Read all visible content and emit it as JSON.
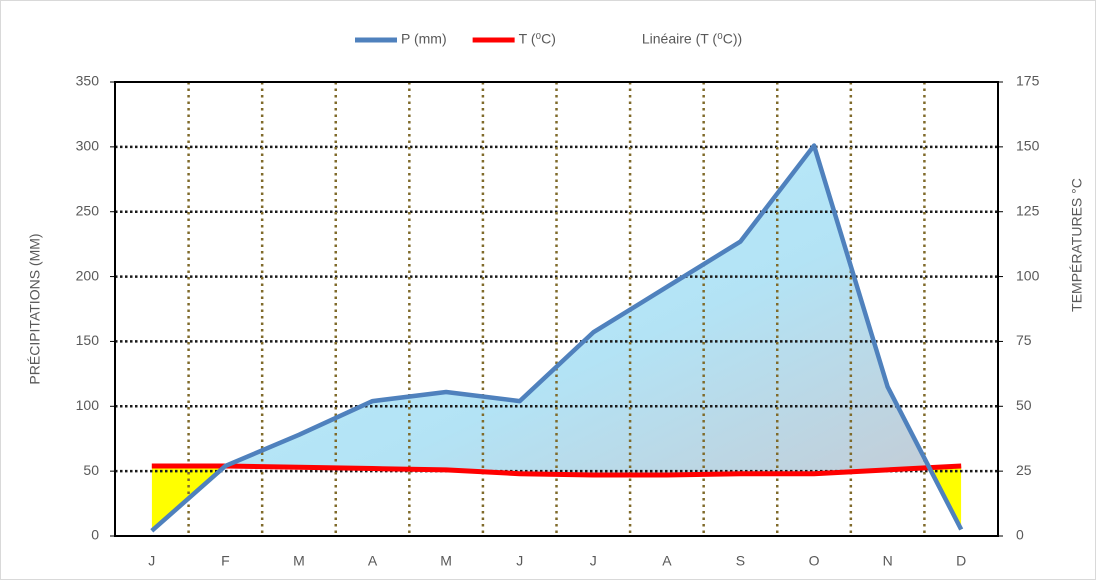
{
  "chart_data": {
    "type": "ombrothermic",
    "categories": [
      "J",
      "F",
      "M",
      "A",
      "M",
      "J",
      "J",
      "A",
      "S",
      "O",
      "N",
      "D"
    ],
    "series": [
      {
        "name": "P (mm)",
        "color": "#4f81bd",
        "values": [
          4,
          54,
          78,
          104,
          111,
          104,
          157,
          192,
          227,
          301,
          115,
          5
        ]
      },
      {
        "name": "T (⁰C)",
        "color": "#ff0000",
        "axis": "y2",
        "values": [
          27,
          27,
          26.5,
          26,
          25.5,
          24,
          23.5,
          23.5,
          24,
          24,
          25.5,
          27
        ]
      }
    ],
    "trendline": {
      "name": "Linéaire (T (⁰C))"
    },
    "ylabel": "PRÉCIPITATIONS (MM)",
    "y2label": "TEMPÉRATURES °C",
    "ylim": [
      0,
      350
    ],
    "yticks": [
      0,
      50,
      100,
      150,
      200,
      250,
      300,
      350
    ],
    "y2lim": [
      0,
      175
    ],
    "y2ticks": [
      0,
      25,
      50,
      75,
      100,
      125,
      150,
      175
    ],
    "grid": true,
    "legend": "top"
  }
}
